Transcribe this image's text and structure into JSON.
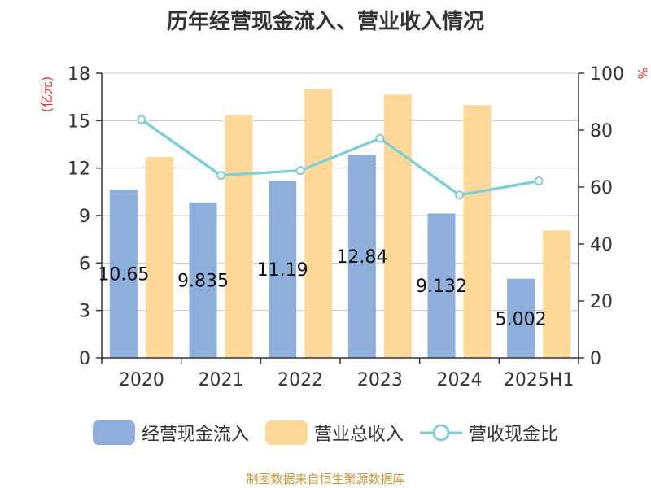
{
  "colors": {
    "bar_cash": "#8eaedb",
    "bar_revenue": "#fed898",
    "line_ratio": "#7ed0d6",
    "axis": "#333333",
    "grid": "#cccccc",
    "left_unit": "#e63333",
    "source": "#c49a3a"
  },
  "chart_data": {
    "type": "bar",
    "title": "历年经营现金流入、营业收入情况",
    "categories": [
      "2020",
      "2021",
      "2022",
      "2023",
      "2024",
      "2025H1"
    ],
    "y_left": {
      "label": "(亿元)",
      "range": [
        0,
        18
      ],
      "ticks": [
        "0",
        "3",
        "6",
        "9",
        "12",
        "15",
        "18"
      ]
    },
    "y_right": {
      "label": "%",
      "range": [
        0,
        100
      ],
      "ticks": [
        "0",
        "20",
        "40",
        "60",
        "80",
        "100"
      ]
    },
    "grid": true,
    "legend_position": "bottom",
    "series": [
      {
        "name": "经营现金流入",
        "type": "bar",
        "axis": "left",
        "values": [
          10.65,
          9.835,
          11.19,
          12.84,
          9.132,
          5.002
        ],
        "labels": [
          "10.65",
          "9.835",
          "11.19",
          "12.84",
          "9.132",
          "5.002"
        ]
      },
      {
        "name": "营业总收入",
        "type": "bar",
        "axis": "left",
        "values": [
          12.7,
          15.35,
          17.0,
          16.65,
          15.98,
          8.05
        ]
      },
      {
        "name": "营收现金比",
        "type": "line",
        "axis": "right",
        "values": [
          83.7,
          64.1,
          65.8,
          77.1,
          57.2,
          62.1
        ]
      }
    ]
  },
  "source_note": "制图数据来自恒生聚源数据库"
}
